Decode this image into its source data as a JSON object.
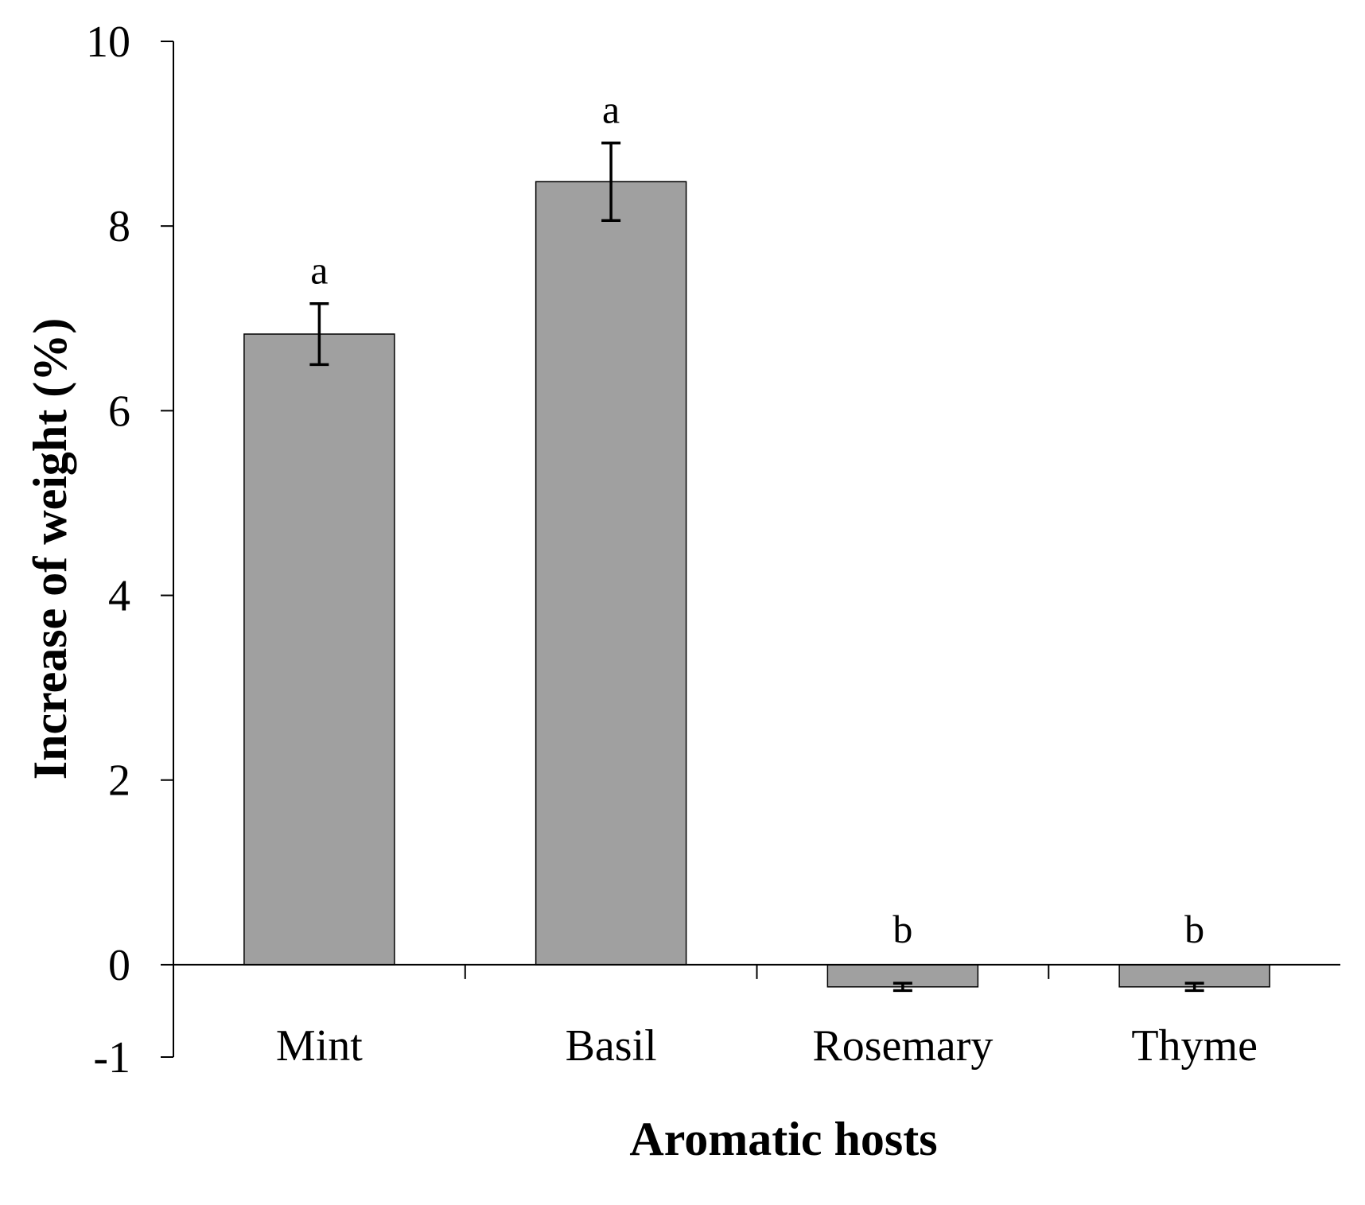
{
  "chart_data": {
    "type": "bar",
    "title": "",
    "xlabel": "Aromatic hosts",
    "ylabel": "Increase of weight (%)",
    "ylim": [
      -1,
      10
    ],
    "yticks": [
      -1,
      0,
      2,
      4,
      6,
      8,
      10
    ],
    "ytick_labels": [
      "-1",
      "0",
      "2",
      "4",
      "6",
      "8",
      "10"
    ],
    "categories": [
      "Mint",
      "Basil",
      "Rosemary",
      "Thyme"
    ],
    "values": [
      6.83,
      8.48,
      -0.24,
      -0.24
    ],
    "error": [
      0.33,
      0.42,
      0.04,
      0.04
    ],
    "significance": [
      "a",
      "a",
      "b",
      "b"
    ],
    "grid": false,
    "legend": "none",
    "colors": {
      "bar_fill": "#a0a0a0",
      "bar_stroke": "#000000",
      "axis": "#000000"
    }
  }
}
